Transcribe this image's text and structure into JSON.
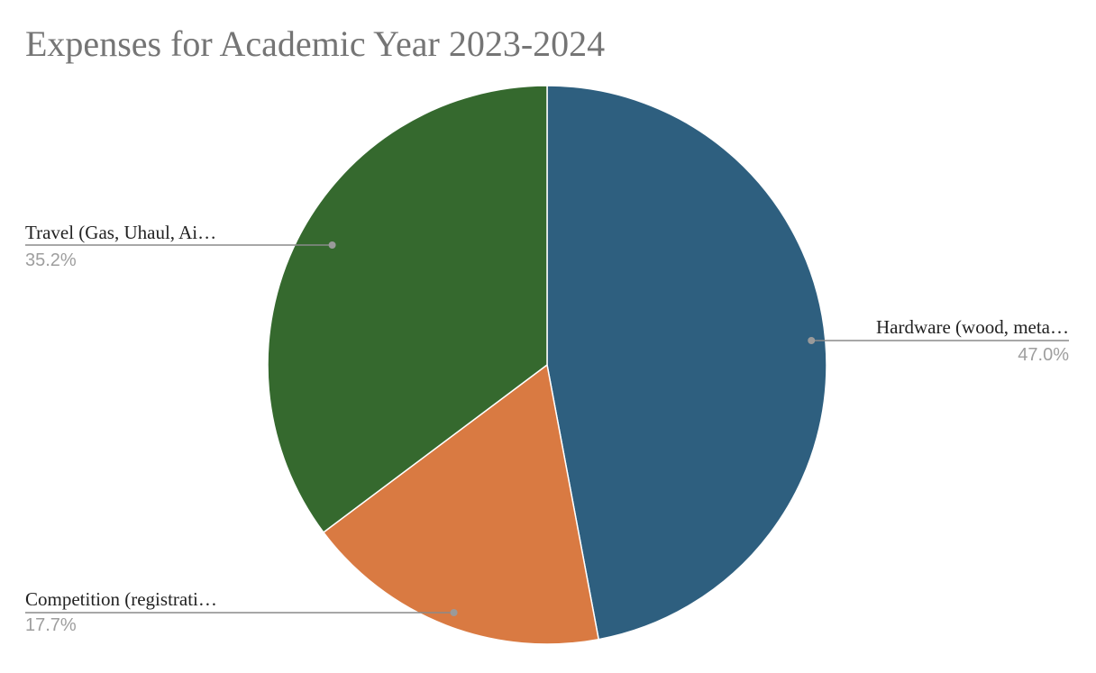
{
  "chart_data": {
    "type": "pie",
    "title": "Expenses for Academic Year 2023-2024",
    "slices": [
      {
        "label": "Hardware (wood, meta…",
        "percent_label": "47.0%",
        "value": 47.0,
        "color": "#2e5f7f"
      },
      {
        "label": "Competition (registrati…",
        "percent_label": "17.7%",
        "value": 17.7,
        "color": "#d97a42"
      },
      {
        "label": "Travel (Gas, Uhaul, Ai…",
        "percent_label": "35.2%",
        "value": 35.2,
        "color": "#35692e"
      }
    ],
    "legend": "none"
  }
}
